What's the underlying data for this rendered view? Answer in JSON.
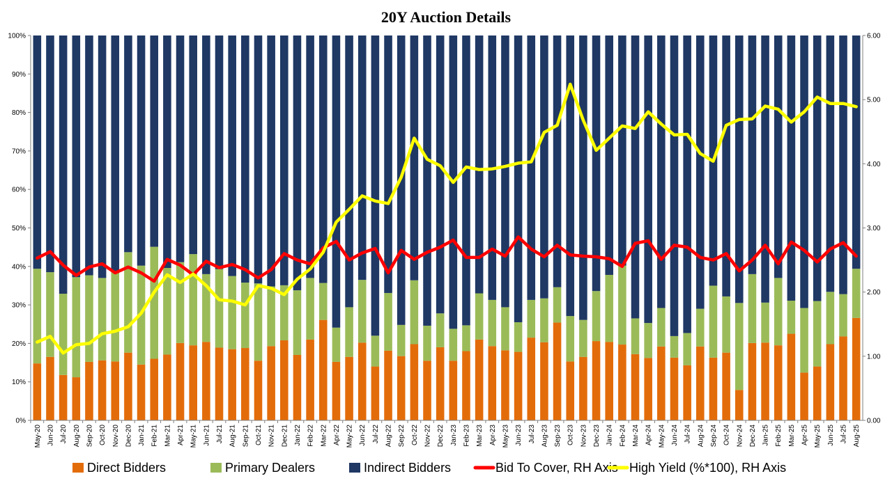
{
  "chart_data": {
    "type": "bar",
    "title": "20Y Auction Details",
    "stacked": true,
    "categories": [
      "May-20",
      "Jun-20",
      "Jul-20",
      "Aug-20",
      "Sep-20",
      "Oct-20",
      "Nov-20",
      "Dec-20",
      "Jan-21",
      "Feb-21",
      "Mar-21",
      "Apr-21",
      "May-21",
      "Jun-21",
      "Jul-21",
      "Aug-21",
      "Sep-21",
      "Oct-21",
      "Nov-21",
      "Dec-21",
      "Jan-22",
      "Feb-22",
      "Mar-22",
      "Apr-22",
      "May-22",
      "Jun-22",
      "Jul-22",
      "Aug-22",
      "Sep-22",
      "Oct-22",
      "Nov-22",
      "Dec-22",
      "Jan-23",
      "Feb-23",
      "Mar-23",
      "Apr-23",
      "May-23",
      "Jun-23",
      "Jul-23",
      "Aug-23",
      "Sep-23",
      "Oct-23",
      "Nov-23",
      "Dec-23",
      "Jan-24",
      "Feb-24",
      "Mar-24",
      "Apr-24",
      "May-24",
      "Jun-24",
      "Jul-24",
      "Aug-24",
      "Sep-24",
      "Oct-24",
      "Nov-24",
      "Dec-24",
      "Jan-25",
      "Feb-25",
      "Mar-25",
      "Apr-25",
      "May-25",
      "Jun-25",
      "Jul-25",
      "Aug-25"
    ],
    "series": [
      {
        "name": "Direct Bidders",
        "axis": "left",
        "color": "#E36C0A",
        "values": [
          14.8,
          16.5,
          11.8,
          11.2,
          15.2,
          15.6,
          15.3,
          17.6,
          14.5,
          16.0,
          17.1,
          20.1,
          19.5,
          20.4,
          18.9,
          18.5,
          18.8,
          15.5,
          19.3,
          20.8,
          17.0,
          21.0,
          26.1,
          15.2,
          16.5,
          20.2,
          14.0,
          18.1,
          16.7,
          19.8,
          15.5,
          19.0,
          15.5,
          18.0,
          21.0,
          19.3,
          18.2,
          17.8,
          21.5,
          20.3,
          25.4,
          15.3,
          16.5,
          20.6,
          20.4,
          19.7,
          17.2,
          16.2,
          19.2,
          16.3,
          14.3,
          19.2,
          16.3,
          17.6,
          7.9,
          20.1,
          20.2,
          19.5,
          22.5,
          12.4,
          14.0,
          19.8,
          21.8,
          26.6
        ]
      },
      {
        "name": "Primary Dealers",
        "axis": "left",
        "color": "#9BBB59",
        "values": [
          24.6,
          22.0,
          21.1,
          26.0,
          22.5,
          21.4,
          23.5,
          26.1,
          25.7,
          29.1,
          22.5,
          21.0,
          23.7,
          17.6,
          20.4,
          19.0,
          17.0,
          20.1,
          15.5,
          14.3,
          16.8,
          16.0,
          9.6,
          8.9,
          12.9,
          16.3,
          8.0,
          15.0,
          8.1,
          16.6,
          9.1,
          8.8,
          8.3,
          6.7,
          12.0,
          12.0,
          11.2,
          7.7,
          9.8,
          11.4,
          9.2,
          11.8,
          9.6,
          13.0,
          17.4,
          20.5,
          9.3,
          9.1,
          10.0,
          5.6,
          8.4,
          9.8,
          18.7,
          14.6,
          22.6,
          17.9,
          10.4,
          17.5,
          8.6,
          16.8,
          17.0,
          13.6,
          11.0,
          12.8
        ]
      },
      {
        "name": "Indirect Bidders",
        "axis": "left",
        "color": "#1F3864",
        "values": [
          60.6,
          61.5,
          67.1,
          62.8,
          62.3,
          63.0,
          61.2,
          56.3,
          59.8,
          54.9,
          60.4,
          58.9,
          56.8,
          62.0,
          60.7,
          62.5,
          64.2,
          64.4,
          65.2,
          64.9,
          66.2,
          63.0,
          64.3,
          75.9,
          70.6,
          63.5,
          78.0,
          66.9,
          75.2,
          63.6,
          75.4,
          72.2,
          76.2,
          75.3,
          67.0,
          68.7,
          70.6,
          74.5,
          68.7,
          68.3,
          65.4,
          72.9,
          73.9,
          66.4,
          62.2,
          59.8,
          73.5,
          74.7,
          70.8,
          78.1,
          77.3,
          71.0,
          65.0,
          67.8,
          69.5,
          62.0,
          69.4,
          63.0,
          68.9,
          70.8,
          69.0,
          66.6,
          67.2,
          60.6
        ]
      },
      {
        "name": "Bid To Cover, RH Axis",
        "axis": "right",
        "type": "line",
        "color": "#FF0000",
        "values": [
          2.53,
          2.63,
          2.42,
          2.26,
          2.39,
          2.44,
          2.3,
          2.39,
          2.3,
          2.17,
          2.51,
          2.42,
          2.27,
          2.48,
          2.38,
          2.43,
          2.35,
          2.22,
          2.35,
          2.6,
          2.5,
          2.44,
          2.69,
          2.79,
          2.5,
          2.61,
          2.68,
          2.3,
          2.65,
          2.51,
          2.62,
          2.7,
          2.81,
          2.54,
          2.54,
          2.67,
          2.56,
          2.86,
          2.67,
          2.55,
          2.73,
          2.58,
          2.56,
          2.55,
          2.52,
          2.4,
          2.76,
          2.8,
          2.51,
          2.73,
          2.7,
          2.54,
          2.5,
          2.6,
          2.33,
          2.5,
          2.73,
          2.44,
          2.78,
          2.65,
          2.47,
          2.67,
          2.77,
          2.56
        ]
      },
      {
        "name": "High Yield (%*100), RH Axis",
        "axis": "right",
        "type": "line",
        "color": "#FFFF00",
        "values": [
          1.22,
          1.31,
          1.05,
          1.18,
          1.2,
          1.35,
          1.39,
          1.46,
          1.67,
          2.0,
          2.27,
          2.15,
          2.28,
          2.1,
          1.88,
          1.86,
          1.8,
          2.1,
          2.06,
          1.96,
          2.2,
          2.36,
          2.62,
          3.09,
          3.29,
          3.5,
          3.42,
          3.38,
          3.79,
          4.4,
          4.07,
          3.97,
          3.71,
          3.95,
          3.91,
          3.92,
          3.96,
          4.01,
          4.03,
          4.49,
          4.6,
          5.24,
          4.68,
          4.21,
          4.4,
          4.59,
          4.55,
          4.81,
          4.62,
          4.45,
          4.46,
          4.16,
          4.04,
          4.6,
          4.69,
          4.7,
          4.9,
          4.85,
          4.65,
          4.81,
          5.04,
          4.94,
          4.94,
          4.89
        ]
      }
    ],
    "y_left": {
      "min": 0,
      "max": 100,
      "ticks": [
        "0%",
        "10%",
        "20%",
        "30%",
        "40%",
        "50%",
        "60%",
        "70%",
        "80%",
        "90%",
        "100%"
      ]
    },
    "y_right": {
      "min": 0,
      "max": 6,
      "ticks": [
        "0.00",
        "1.00",
        "2.00",
        "3.00",
        "4.00",
        "5.00",
        "6.00"
      ]
    },
    "grid": false,
    "legend_position": "bottom"
  },
  "legend": [
    {
      "label": "Direct Bidders",
      "color": "#E36C0A",
      "kind": "box"
    },
    {
      "label": "Primary Dealers",
      "color": "#9BBB59",
      "kind": "box"
    },
    {
      "label": "Indirect Bidders",
      "color": "#1F3864",
      "kind": "box"
    },
    {
      "label": "Bid To Cover, RH Axis",
      "color": "#FF0000",
      "kind": "line"
    },
    {
      "label": "High Yield (%*100), RH Axis",
      "color": "#FFFF00",
      "kind": "line"
    }
  ]
}
